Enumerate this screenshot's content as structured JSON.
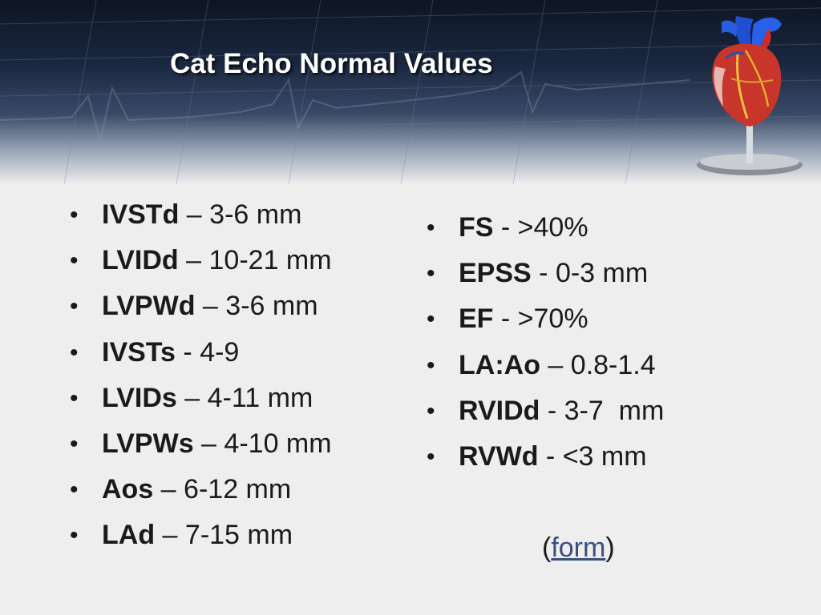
{
  "slide": {
    "title": "Cat Echo Normal Values"
  },
  "left_list": [
    {
      "term": "IVSTd",
      "sep": " – ",
      "value": "3-6 mm"
    },
    {
      "term": "LVIDd",
      "sep": " – ",
      "value": "10-21 mm"
    },
    {
      "term": "LVPWd",
      "sep": " – ",
      "value": "3-6 mm"
    },
    {
      "term": "IVSTs",
      "sep": " - ",
      "value": "4-9"
    },
    {
      "term": "LVIDs",
      "sep": " – ",
      "value": "4-11 mm"
    },
    {
      "term": "LVPWs",
      "sep": " – ",
      "value": "4-10 mm"
    },
    {
      "term": "Aos",
      "sep": " – ",
      "value": "6-12 mm"
    },
    {
      "term": "LAd",
      "sep": " – ",
      "value": "7-15 mm"
    }
  ],
  "right_list": [
    {
      "term": "FS",
      "sep": " - ",
      "value": ">40%"
    },
    {
      "term": "EPSS",
      "sep": " - ",
      "value": "0-3 mm"
    },
    {
      "term": "EF",
      "sep": " - ",
      "value": ">70%"
    },
    {
      "term": "LA:Ao",
      "sep": " – ",
      "value": "0.8-1.4"
    },
    {
      "term": "RVIDd",
      "sep": " - ",
      "value": "3-7  mm"
    },
    {
      "term": "RVWd",
      "sep": " - ",
      "value": "<3 mm"
    }
  ],
  "form_reference": {
    "open": "(",
    "link_label": "form",
    "close": ")"
  },
  "bullet_char": "•",
  "icons": {
    "heart": "heart-model-icon"
  },
  "colors": {
    "banner_dark": "#0d1622",
    "title_text": "#ffffff",
    "body_text": "#1a1a1a",
    "link": "#3a4f80",
    "background": "#eeeeee"
  }
}
